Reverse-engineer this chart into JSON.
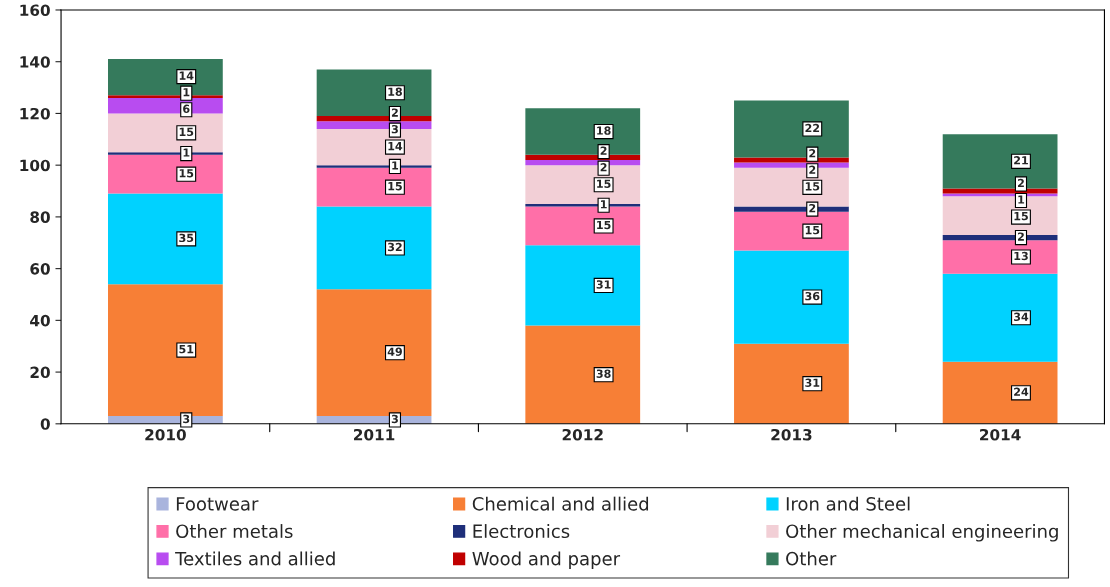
{
  "chart_data": {
    "type": "bar",
    "stacked": true,
    "categories": [
      "2010",
      "2011",
      "2012",
      "2013",
      "2014"
    ],
    "series": [
      {
        "name": "Footwear",
        "color": "#a9b4dd",
        "values": [
          3,
          3,
          null,
          null,
          null
        ]
      },
      {
        "name": "Chemical and allied",
        "color": "#f77f36",
        "values": [
          51,
          49,
          38,
          31,
          24
        ]
      },
      {
        "name": "Iron and Steel",
        "color": "#00d2ff",
        "values": [
          35,
          32,
          31,
          36,
          34
        ]
      },
      {
        "name": "Other metals",
        "color": "#ff6fa8",
        "values": [
          15,
          15,
          15,
          15,
          13
        ]
      },
      {
        "name": "Electronics",
        "color": "#1f2f7a",
        "values": [
          1,
          1,
          1,
          2,
          2
        ]
      },
      {
        "name": "Other mechanical engineering",
        "color": "#f2cfd6",
        "values": [
          15,
          14,
          15,
          15,
          15
        ]
      },
      {
        "name": "Textiles and allied",
        "color": "#b84cf0",
        "values": [
          6,
          3,
          2,
          2,
          1
        ]
      },
      {
        "name": "Wood and paper",
        "color": "#c00000",
        "values": [
          1,
          2,
          2,
          2,
          2
        ]
      },
      {
        "name": "Other",
        "color": "#357a5c",
        "values": [
          14,
          18,
          18,
          22,
          21
        ]
      }
    ],
    "ylim": [
      0,
      160
    ],
    "yticks": [
      0,
      20,
      40,
      60,
      80,
      100,
      120,
      140,
      160
    ],
    "data_labels": true,
    "legend": "bottom",
    "grid": false
  }
}
